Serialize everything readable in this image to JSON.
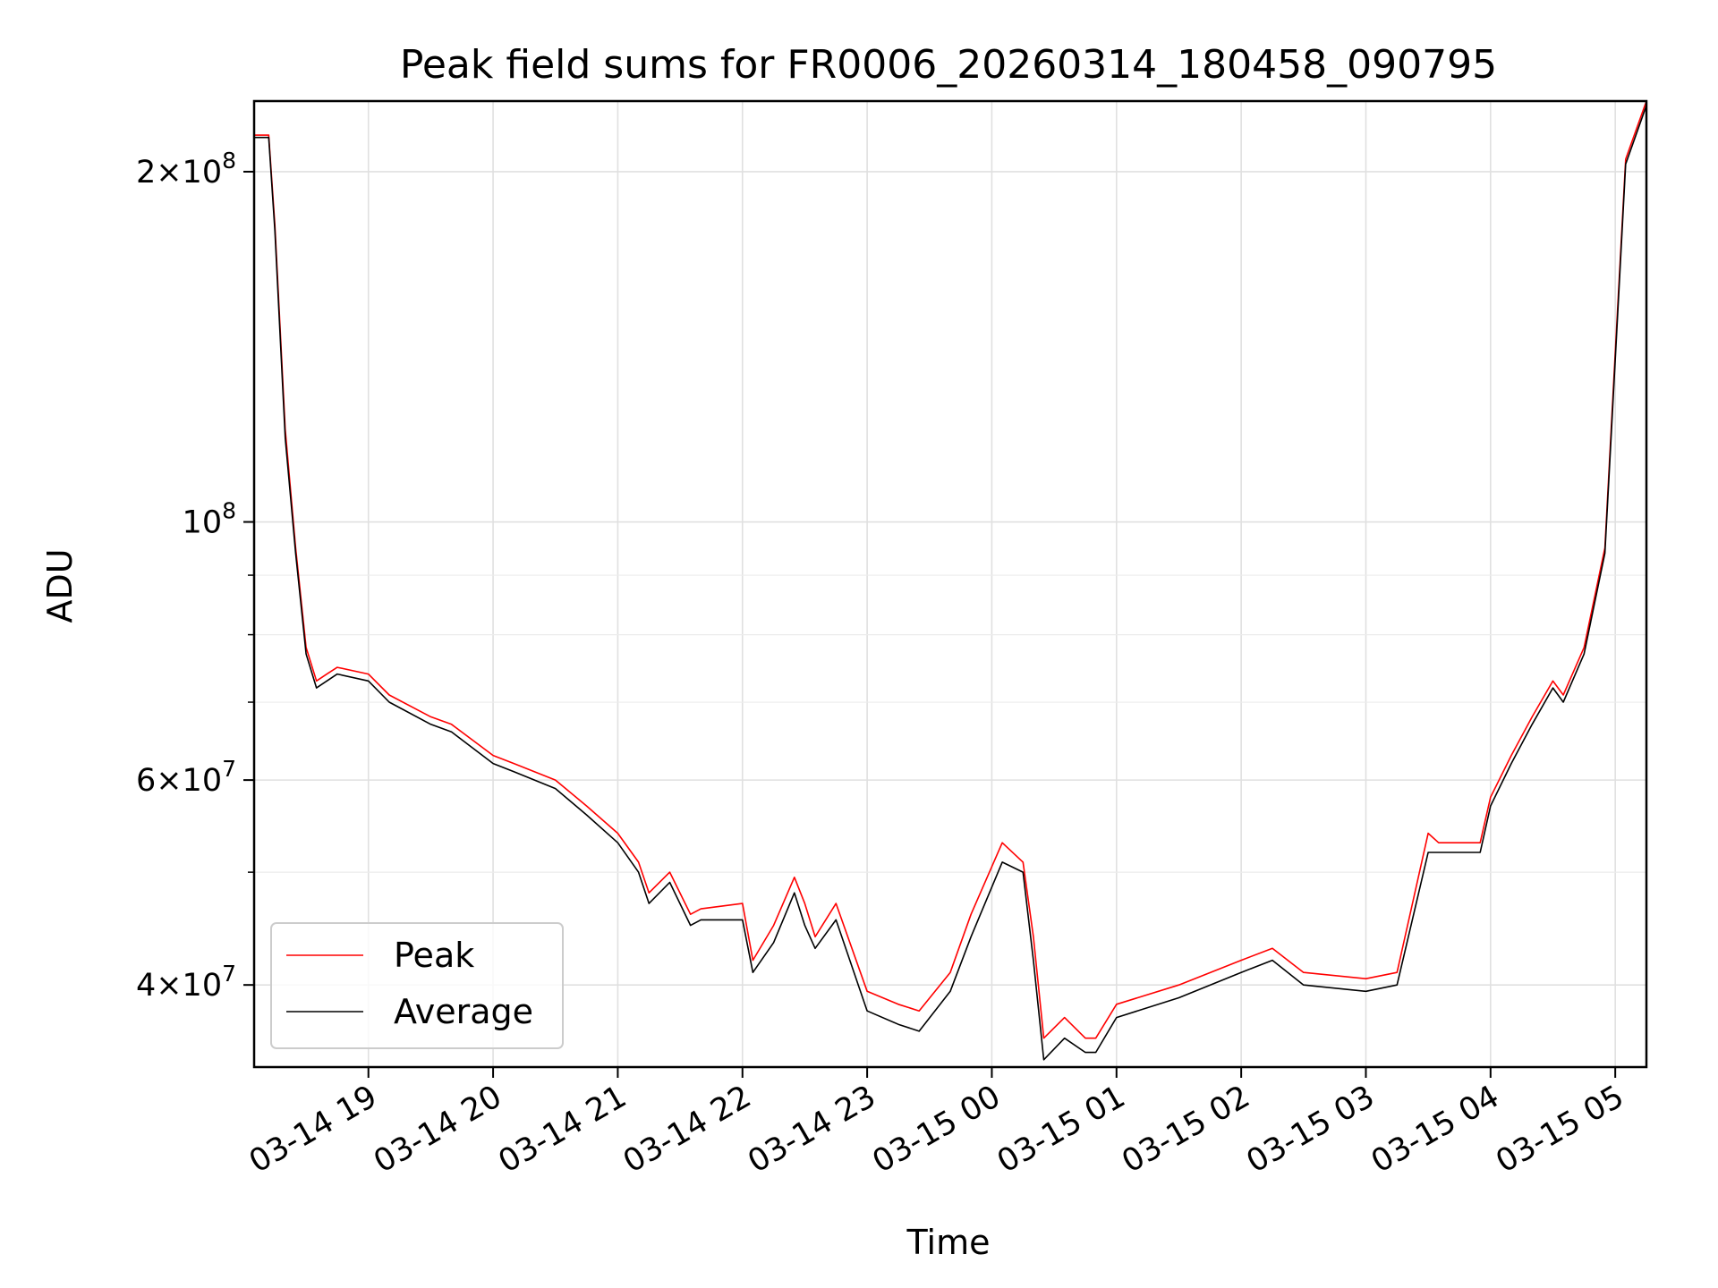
{
  "chart_data": {
    "type": "line",
    "title": "Peak field sums for FR0006_20260314_180458_090795",
    "xlabel": "Time",
    "ylabel": "ADU",
    "yscale": "log",
    "grid": true,
    "legend_position": "lower-left",
    "x_range": [
      "03-14 18:05",
      "03-15 05:15"
    ],
    "ylim": [
      34000000,
      230000000
    ],
    "x_ticks": [
      "03-14 19",
      "03-14 20",
      "03-14 21",
      "03-14 22",
      "03-14 23",
      "03-15 00",
      "03-15 01",
      "03-15 02",
      "03-15 03",
      "03-15 04",
      "03-15 05"
    ],
    "y_ticks": [
      {
        "value": 200000000,
        "mantissa": "2",
        "exponent": "8"
      },
      {
        "value": 100000000,
        "mantissa": "",
        "exponent": "8"
      },
      {
        "value": 60000000,
        "mantissa": "6",
        "exponent": "7"
      },
      {
        "value": 40000000,
        "mantissa": "4",
        "exponent": "7"
      }
    ],
    "y_minor_ticks": [
      30000000,
      50000000,
      70000000,
      80000000,
      90000000
    ],
    "series": [
      {
        "name": "Peak",
        "color": "#ff0000",
        "x": [
          "03-14 18:05",
          "03-14 18:12",
          "03-14 18:15",
          "03-14 18:20",
          "03-14 18:25",
          "03-14 18:30",
          "03-14 18:35",
          "03-14 18:40",
          "03-14 18:45",
          "03-14 19:00",
          "03-14 19:10",
          "03-14 19:30",
          "03-14 19:40",
          "03-14 20:00",
          "03-14 20:10",
          "03-14 20:30",
          "03-14 20:45",
          "03-14 21:00",
          "03-14 21:10",
          "03-14 21:15",
          "03-14 21:25",
          "03-14 21:35",
          "03-14 21:40",
          "03-14 22:00",
          "03-14 22:05",
          "03-14 22:15",
          "03-14 22:25",
          "03-14 22:30",
          "03-14 22:35",
          "03-14 22:45",
          "03-14 23:00",
          "03-14 23:15",
          "03-14 23:25",
          "03-14 23:40",
          "03-14 23:50",
          "03-15 00:05",
          "03-15 00:15",
          "03-15 00:20",
          "03-15 00:25",
          "03-15 00:35",
          "03-15 00:45",
          "03-15 00:50",
          "03-15 01:00",
          "03-15 01:30",
          "03-15 02:00",
          "03-15 02:15",
          "03-15 02:30",
          "03-15 03:00",
          "03-15 03:15",
          "03-15 03:30",
          "03-15 03:35",
          "03-15 03:55",
          "03-15 04:00",
          "03-15 04:10",
          "03-15 04:20",
          "03-15 04:30",
          "03-15 04:35",
          "03-15 04:45",
          "03-15 04:55",
          "03-15 05:00",
          "03-15 05:05",
          "03-15 05:15"
        ],
        "values": [
          215000000,
          215000000,
          180000000,
          120000000,
          95000000,
          78000000,
          73000000,
          74000000,
          75000000,
          74000000,
          71000000,
          68000000,
          67000000,
          63000000,
          62000000,
          60000000,
          57000000,
          54000000,
          51000000,
          48000000,
          50000000,
          46000000,
          46500000,
          47000000,
          42000000,
          45000000,
          49500000,
          47000000,
          44000000,
          47000000,
          39500000,
          38500000,
          38000000,
          41000000,
          46000000,
          53000000,
          51000000,
          44000000,
          36000000,
          37500000,
          36000000,
          36000000,
          38500000,
          40000000,
          42000000,
          43000000,
          41000000,
          40500000,
          41000000,
          54000000,
          53000000,
          53000000,
          58000000,
          63000000,
          68000000,
          73000000,
          71000000,
          78000000,
          95000000,
          140000000,
          205000000,
          230000000
        ]
      },
      {
        "name": "Average",
        "color": "#000000",
        "x": [
          "03-14 18:05",
          "03-14 18:12",
          "03-14 18:15",
          "03-14 18:20",
          "03-14 18:25",
          "03-14 18:30",
          "03-14 18:35",
          "03-14 18:40",
          "03-14 18:45",
          "03-14 19:00",
          "03-14 19:10",
          "03-14 19:30",
          "03-14 19:40",
          "03-14 20:00",
          "03-14 20:10",
          "03-14 20:30",
          "03-14 20:45",
          "03-14 21:00",
          "03-14 21:10",
          "03-14 21:15",
          "03-14 21:25",
          "03-14 21:35",
          "03-14 21:40",
          "03-14 22:00",
          "03-14 22:05",
          "03-14 22:15",
          "03-14 22:25",
          "03-14 22:30",
          "03-14 22:35",
          "03-14 22:45",
          "03-14 23:00",
          "03-14 23:15",
          "03-14 23:25",
          "03-14 23:40",
          "03-14 23:50",
          "03-15 00:05",
          "03-15 00:15",
          "03-15 00:20",
          "03-15 00:25",
          "03-15 00:35",
          "03-15 00:45",
          "03-15 00:50",
          "03-15 01:00",
          "03-15 01:30",
          "03-15 02:00",
          "03-15 02:15",
          "03-15 02:30",
          "03-15 03:00",
          "03-15 03:15",
          "03-15 03:30",
          "03-15 03:35",
          "03-15 03:55",
          "03-15 04:00",
          "03-15 04:10",
          "03-15 04:20",
          "03-15 04:30",
          "03-15 04:35",
          "03-15 04:45",
          "03-15 04:55",
          "03-15 05:00",
          "03-15 05:05",
          "03-15 05:15"
        ],
        "values": [
          214000000,
          214000000,
          178000000,
          118000000,
          94000000,
          77000000,
          72000000,
          73000000,
          74000000,
          73000000,
          70000000,
          67000000,
          66000000,
          62000000,
          61000000,
          59000000,
          56000000,
          53000000,
          50000000,
          47000000,
          49000000,
          45000000,
          45500000,
          45500000,
          41000000,
          43500000,
          48000000,
          45000000,
          43000000,
          45500000,
          38000000,
          37000000,
          36500000,
          39500000,
          44000000,
          51000000,
          50000000,
          42000000,
          34500000,
          36000000,
          35000000,
          35000000,
          37500000,
          39000000,
          41000000,
          42000000,
          40000000,
          39500000,
          40000000,
          52000000,
          52000000,
          52000000,
          57000000,
          62000000,
          67000000,
          72000000,
          70000000,
          77000000,
          94000000,
          138000000,
          203000000,
          228000000
        ]
      }
    ]
  }
}
